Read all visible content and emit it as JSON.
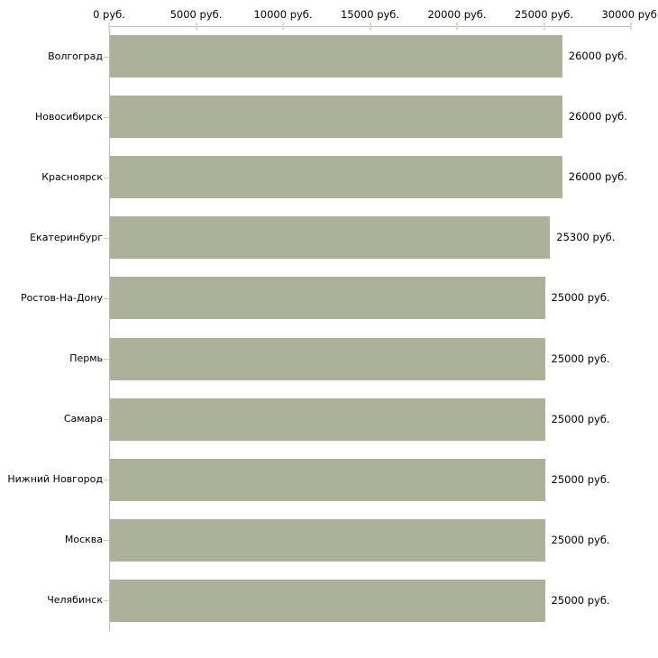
{
  "chart_data": {
    "type": "bar",
    "orientation": "horizontal",
    "title": "",
    "unit": "руб.",
    "categories": [
      "Волгоград",
      "Новосибирск",
      "Красноярск",
      "Екатеринбург",
      "Ростов-На-Дону",
      "Пермь",
      "Самара",
      "Нижний Новгород",
      "Москва",
      "Челябинск"
    ],
    "values": [
      26000,
      26000,
      26000,
      25300,
      25000,
      25000,
      25000,
      25000,
      25000,
      25000
    ],
    "value_labels": [
      "26000 руб.",
      "26000 руб.",
      "26000 руб.",
      "25300 руб.",
      "25000 руб.",
      "25000 руб.",
      "25000 руб.",
      "25000 руб.",
      "25000 руб.",
      "25000 руб."
    ],
    "x_tick_values": [
      0,
      5000,
      10000,
      15000,
      20000,
      25000,
      30000
    ],
    "x_tick_labels": [
      "0 руб.",
      "5000 руб.",
      "10000 руб.",
      "15000 руб.",
      "20000 руб.",
      "25000 руб.",
      "30000 руб."
    ],
    "xlim": [
      0,
      30000
    ],
    "grid": false,
    "legend": "none",
    "colors": {
      "bar": "#abb299",
      "axis": "#bdbdbd",
      "x_tick": "#d9dcc2",
      "y_tick": "#c9ccb2",
      "text": "#000000",
      "background": "#ffffff"
    }
  }
}
